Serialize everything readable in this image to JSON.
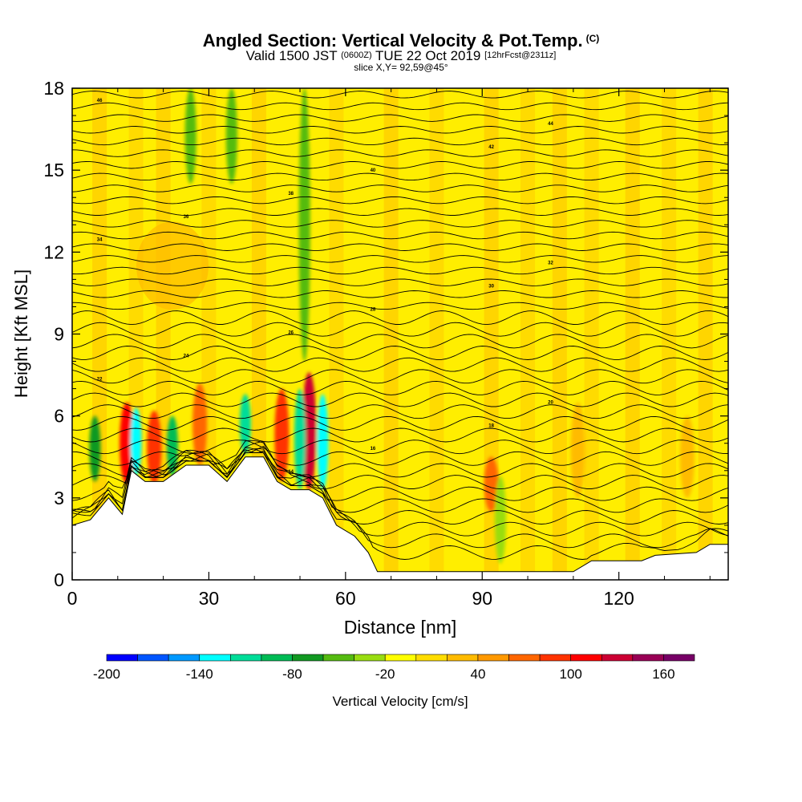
{
  "header": {
    "title": "Angled Section: Vertical Velocity & Pot.Temp.",
    "title_unit": "(C)",
    "valid_prefix": "Valid 1500 JST",
    "valid_utc": "(0600Z)",
    "valid_date": "TUE 22 Oct 2019",
    "forecast": "[12hrFcst@2311z]",
    "slice": "slice X,Y= 92,59@45°"
  },
  "chart_data": {
    "type": "heatmap",
    "xlabel": "Distance [nm]",
    "ylabel": "Height [Kft MSL]",
    "xlim": [
      0,
      144
    ],
    "ylim": [
      0,
      18
    ],
    "x_ticks": [
      0,
      30,
      60,
      90,
      120
    ],
    "y_ticks": [
      0,
      3,
      6,
      9,
      12,
      15,
      18
    ],
    "colorbar": {
      "label": "Vertical Velocity [cm/s]",
      "min": -200,
      "max": 180,
      "step": 20,
      "tick_labels": [
        "-200",
        "-140",
        "-80",
        "-20",
        "40",
        "100",
        "160"
      ],
      "colors": [
        "#0000ff",
        "#0055ff",
        "#0099ff",
        "#00ffff",
        "#00dd99",
        "#00bb55",
        "#119922",
        "#55bb11",
        "#99dd11",
        "#ffff00",
        "#ffdd00",
        "#ffbb00",
        "#ff9900",
        "#ff6600",
        "#ff3300",
        "#ff0000",
        "#cc0033",
        "#990055",
        "#770066"
      ]
    },
    "terrain": [
      [
        0,
        2
      ],
      [
        4,
        2.2
      ],
      [
        8,
        3
      ],
      [
        11,
        2.4
      ],
      [
        13,
        4
      ],
      [
        16,
        3.6
      ],
      [
        20,
        3.6
      ],
      [
        25,
        4.2
      ],
      [
        30,
        4.2
      ],
      [
        34,
        3.6
      ],
      [
        38,
        4.5
      ],
      [
        42,
        4.5
      ],
      [
        45,
        3.6
      ],
      [
        48,
        3.3
      ],
      [
        52,
        3.3
      ],
      [
        55,
        3
      ],
      [
        58,
        2
      ],
      [
        62,
        1.6
      ],
      [
        65,
        1
      ],
      [
        67,
        0.3
      ],
      [
        85,
        0.3
      ],
      [
        110,
        0.3
      ],
      [
        114,
        0.7
      ],
      [
        125,
        0.7
      ],
      [
        128,
        0.9
      ],
      [
        137,
        1
      ],
      [
        140,
        1.3
      ],
      [
        144,
        1.3
      ]
    ],
    "updrafts": [
      {
        "x": 12,
        "y0": 3.5,
        "y1": 6.5,
        "value": 110
      },
      {
        "x": 18,
        "y0": 3.5,
        "y1": 6.2,
        "value": 80
      },
      {
        "x": 28,
        "y0": 4.2,
        "y1": 7.2,
        "value": 60
      },
      {
        "x": 46,
        "y0": 3.6,
        "y1": 7.0,
        "value": 80
      },
      {
        "x": 52,
        "y0": 3.3,
        "y1": 7.6,
        "value": 120
      },
      {
        "x": 92,
        "y0": 2.5,
        "y1": 4.5,
        "value": 60
      },
      {
        "x": 111,
        "y0": 3.0,
        "y1": 6.5,
        "value": 30
      },
      {
        "x": 135,
        "y0": 3.0,
        "y1": 6.0,
        "value": 30
      }
    ],
    "downdrafts": [
      {
        "x": 14,
        "y0": 3.8,
        "y1": 6.3,
        "value": -140
      },
      {
        "x": 5,
        "y0": 3.6,
        "y1": 6.0,
        "value": -80
      },
      {
        "x": 22,
        "y0": 3.8,
        "y1": 6.0,
        "value": -100
      },
      {
        "x": 38,
        "y0": 4.6,
        "y1": 6.8,
        "value": -120
      },
      {
        "x": 50,
        "y0": 3.3,
        "y1": 7.0,
        "value": -120
      },
      {
        "x": 55,
        "y0": 3.3,
        "y1": 6.8,
        "value": -130
      },
      {
        "x": 51,
        "y0": 8.0,
        "y1": 18,
        "value": -60
      },
      {
        "x": 26,
        "y0": 14.5,
        "y1": 18,
        "value": -50
      },
      {
        "x": 35,
        "y0": 14.5,
        "y1": 18,
        "value": -50
      },
      {
        "x": 94,
        "y0": 0.6,
        "y1": 3.8,
        "value": -40
      }
    ],
    "isentrope_labels": [
      "10",
      "12",
      "14",
      "16",
      "18",
      "20",
      "22",
      "24",
      "26",
      "28",
      "30",
      "32",
      "34",
      "36",
      "38",
      "40",
      "42",
      "44",
      "46"
    ]
  }
}
